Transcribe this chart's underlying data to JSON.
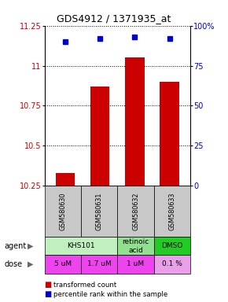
{
  "title": "GDS4912 / 1371935_at",
  "samples": [
    "GSM580630",
    "GSM580631",
    "GSM580632",
    "GSM580633"
  ],
  "bar_values": [
    10.33,
    10.87,
    11.05,
    10.9
  ],
  "percentile_values": [
    90,
    92,
    93,
    92
  ],
  "ylim": [
    10.25,
    11.25
  ],
  "yticks": [
    10.25,
    10.5,
    10.75,
    11.0,
    11.25
  ],
  "ytick_labels": [
    "10.25",
    "10.5",
    "10.75",
    "11",
    "11.25"
  ],
  "y2lim": [
    0,
    100
  ],
  "y2ticks": [
    0,
    25,
    50,
    75,
    100
  ],
  "y2ticklabels": [
    "0",
    "25",
    "50",
    "75",
    "100%"
  ],
  "bar_color": "#cc0000",
  "dot_color": "#0000cc",
  "dose_colors": [
    "#ee44ee",
    "#ee44ee",
    "#ee44ee",
    "#e8a0e8"
  ],
  "agent_groups": [
    {
      "cols": [
        0,
        1
      ],
      "text": "KHS101",
      "color": "#c0f0c0"
    },
    {
      "cols": [
        2
      ],
      "text": "retinoic\nacid",
      "color": "#90e090"
    },
    {
      "cols": [
        3
      ],
      "text": "DMSO",
      "color": "#22cc22"
    }
  ],
  "dose_labels": [
    "5 uM",
    "1.7 uM",
    "1 uM",
    "0.1 %"
  ],
  "dose_color": "#ee44ee",
  "sample_bg_color": "#c8c8c8",
  "legend_red_label": "transformed count",
  "legend_blue_label": "percentile rank within the sample"
}
